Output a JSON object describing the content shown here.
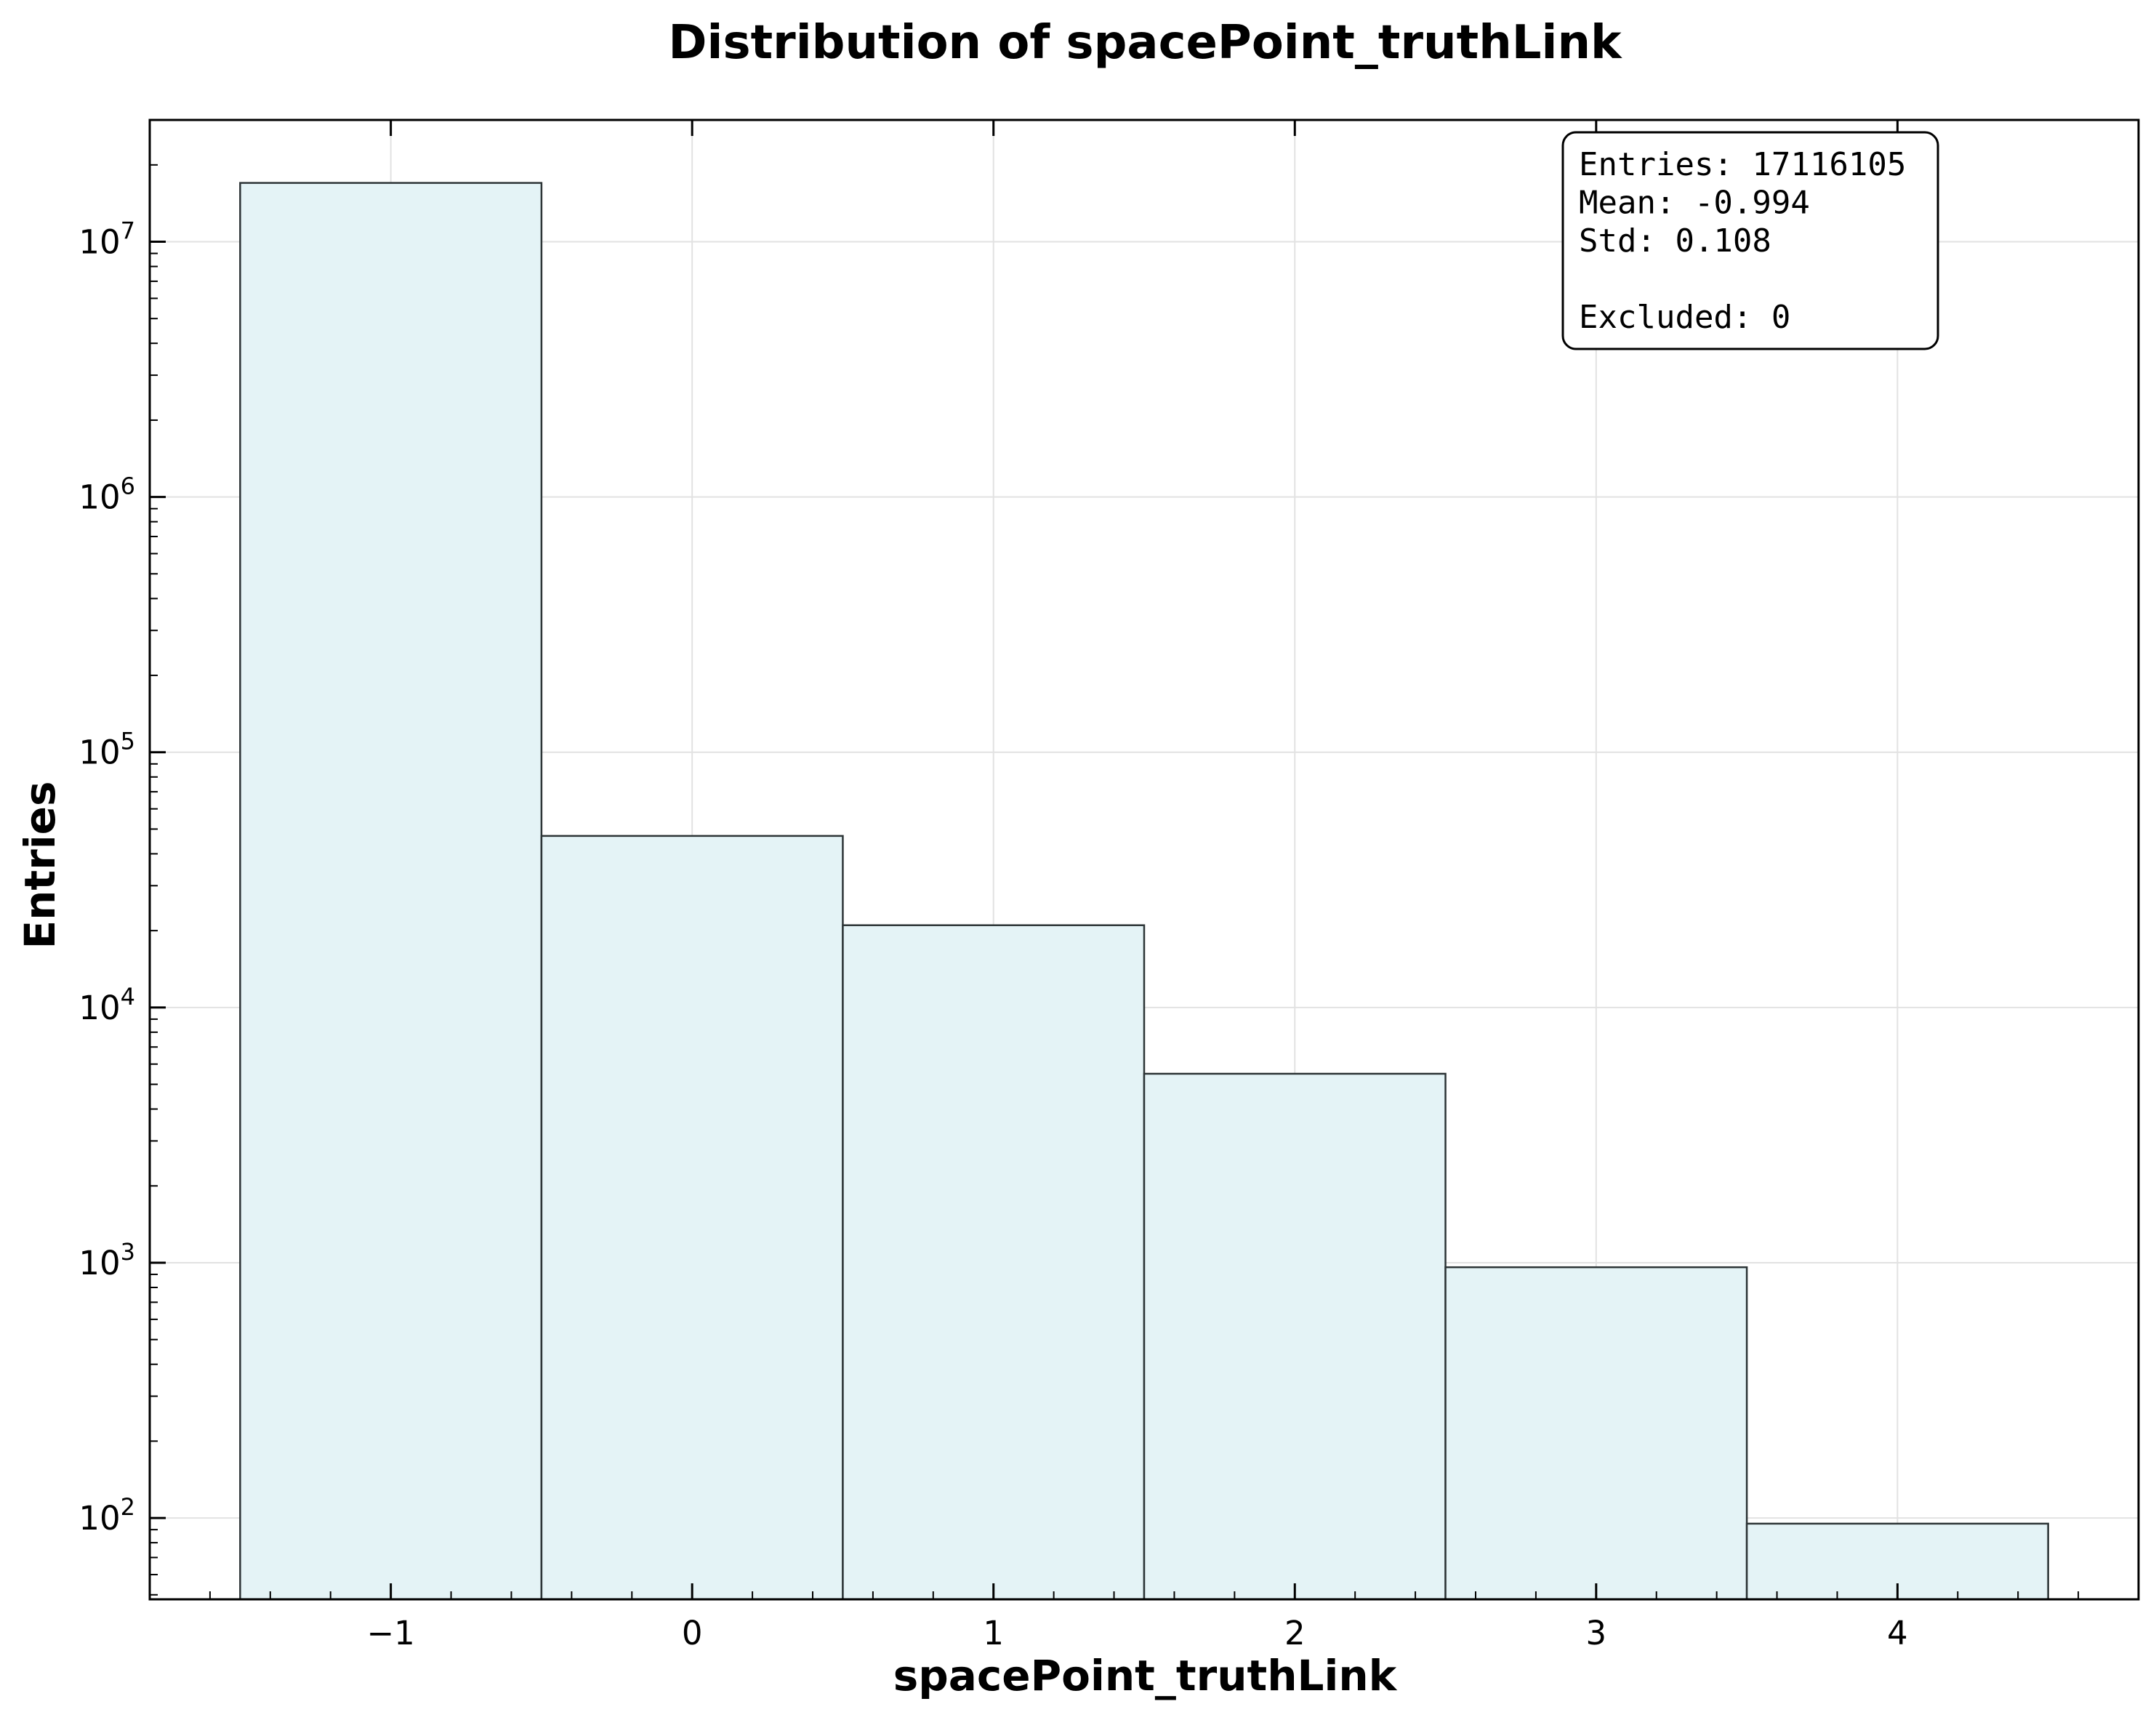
{
  "chart_data": {
    "type": "bar",
    "title": "Distribution of spacePoint_truthLink",
    "xlabel": "spacePoint_truthLink",
    "ylabel": "Entries",
    "y_scale": "log",
    "xlim": [
      -1.8,
      4.8
    ],
    "ylim": [
      48,
      30000000
    ],
    "x_ticks": [
      -1,
      0,
      1,
      2,
      3,
      4
    ],
    "x_tick_labels": [
      "−1",
      "0",
      "1",
      "2",
      "3",
      "4"
    ],
    "y_ticks": [
      {
        "value": 100,
        "base": "10",
        "exp": "2"
      },
      {
        "value": 1000,
        "base": "10",
        "exp": "3"
      },
      {
        "value": 10000,
        "base": "10",
        "exp": "4"
      },
      {
        "value": 100000,
        "base": "10",
        "exp": "5"
      },
      {
        "value": 1000000,
        "base": "10",
        "exp": "6"
      },
      {
        "value": 10000000,
        "base": "10",
        "exp": "7"
      }
    ],
    "bins": [
      {
        "x0": -1.5,
        "x1": -0.5,
        "value": 17000000
      },
      {
        "x0": -0.5,
        "x1": 0.5,
        "value": 47000
      },
      {
        "x0": 0.5,
        "x1": 1.5,
        "value": 21000
      },
      {
        "x0": 1.5,
        "x1": 2.5,
        "value": 5500
      },
      {
        "x0": 2.5,
        "x1": 3.5,
        "value": 960
      },
      {
        "x0": 3.5,
        "x1": 4.5,
        "value": 95
      }
    ],
    "bar_color": "#e4f3f6",
    "edge_color": "#2c3436",
    "grid": true,
    "stats_box": {
      "position": "top-right",
      "lines": [
        "Entries: 17116105",
        "Mean: -0.994",
        "Std: 0.108",
        "",
        "Excluded: 0"
      ]
    }
  }
}
